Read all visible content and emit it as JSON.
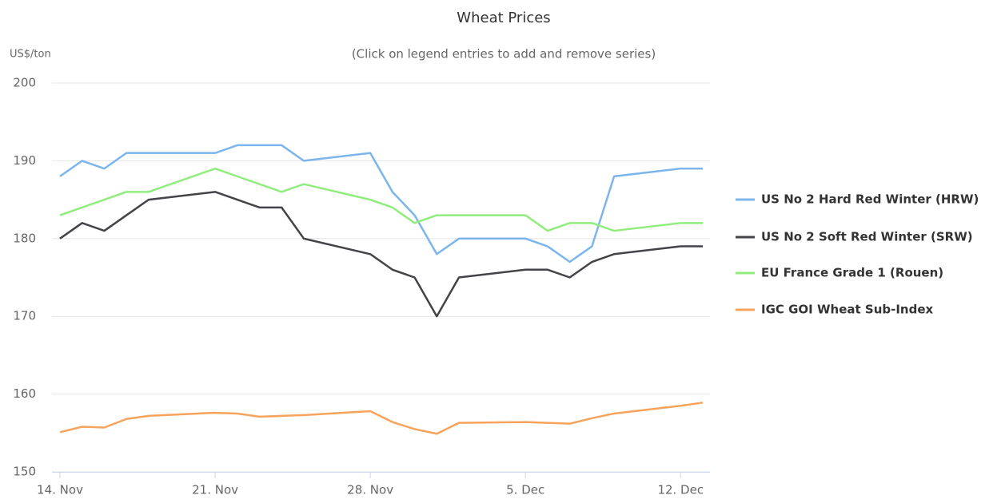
{
  "chart_data": {
    "type": "line",
    "title": "Wheat Prices",
    "subtitle": "(Click on legend entries to add and remove series)",
    "y_label": "US$/ton",
    "x": [
      "14. Nov",
      "15. Nov",
      "16. Nov",
      "17. Nov",
      "18. Nov",
      "21. Nov",
      "22. Nov",
      "23. Nov",
      "24. Nov",
      "25. Nov",
      "28. Nov",
      "29. Nov",
      "30. Nov",
      "1. Dec",
      "2. Dec",
      "5. Dec",
      "6. Dec",
      "7. Dec",
      "8. Dec",
      "9. Dec",
      "12. Dec",
      "13. Dec"
    ],
    "xlim": [
      "14. Nov",
      "13. Dec"
    ],
    "xticks": [
      "14. Nov",
      "21. Nov",
      "28. Nov",
      "5. Dec",
      "12. Dec"
    ],
    "ylim": [
      150,
      200
    ],
    "yticks": [
      150,
      160,
      170,
      180,
      190,
      200
    ],
    "grid": true,
    "legend": "right",
    "series": [
      {
        "name": "US No 2 Hard Red Winter (HRW)",
        "color": "#7cb5ec",
        "values": [
          188,
          190,
          189,
          191,
          191,
          191,
          192,
          192,
          192,
          190,
          191,
          186,
          183,
          178,
          180,
          180,
          179,
          177,
          179,
          188,
          189,
          189
        ]
      },
      {
        "name": "US No 2 Soft Red Winter (SRW)",
        "color": "#434348",
        "values": [
          180,
          182,
          181,
          183,
          185,
          186,
          185,
          184,
          184,
          180,
          178,
          176,
          175,
          170,
          175,
          176,
          176,
          175,
          177,
          178,
          179,
          179
        ]
      },
      {
        "name": "EU France Grade 1 (Rouen)",
        "color": "#90ed7d",
        "values": [
          183,
          184,
          185,
          186,
          186,
          189,
          188,
          187,
          186,
          187,
          185,
          184,
          182,
          183,
          183,
          183,
          181,
          182,
          182,
          181,
          182,
          182
        ]
      },
      {
        "name": "IGC GOI Wheat Sub-Index",
        "color": "#f7a35c",
        "values": [
          155.1,
          155.8,
          155.7,
          156.8,
          157.2,
          157.6,
          157.5,
          157.1,
          157.2,
          157.3,
          157.8,
          156.4,
          155.5,
          154.9,
          156.3,
          156.4,
          156.3,
          156.2,
          156.9,
          157.5,
          158.5,
          158.9
        ]
      }
    ]
  }
}
